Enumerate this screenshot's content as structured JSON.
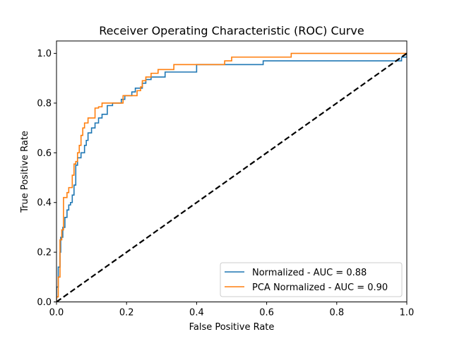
{
  "chart_data": {
    "type": "line",
    "title": "Receiver Operating Characteristic (ROC) Curve",
    "xlabel": "False Positive Rate",
    "ylabel": "True Positive Rate",
    "xlim": [
      0.0,
      1.0
    ],
    "ylim": [
      0.0,
      1.05
    ],
    "x_ticks": [
      0.0,
      0.2,
      0.4,
      0.6,
      0.8,
      1.0
    ],
    "y_ticks": [
      0.0,
      0.2,
      0.4,
      0.6,
      0.8,
      1.0
    ],
    "x_tick_labels": [
      "0.0",
      "0.2",
      "0.4",
      "0.6",
      "0.8",
      "1.0"
    ],
    "y_tick_labels": [
      "0.0",
      "0.2",
      "0.4",
      "0.6",
      "0.8",
      "1.0"
    ],
    "grid": false,
    "legend_position": "lower-right",
    "series": [
      {
        "name": "Normalized - AUC = 0.88",
        "color": "#1f77b4",
        "style": "solid",
        "points": [
          [
            0.0,
            0.0
          ],
          [
            0.0,
            0.06
          ],
          [
            0.005,
            0.06
          ],
          [
            0.005,
            0.14
          ],
          [
            0.01,
            0.14
          ],
          [
            0.01,
            0.2
          ],
          [
            0.012,
            0.2
          ],
          [
            0.012,
            0.26
          ],
          [
            0.018,
            0.26
          ],
          [
            0.018,
            0.3
          ],
          [
            0.024,
            0.3
          ],
          [
            0.024,
            0.34
          ],
          [
            0.03,
            0.34
          ],
          [
            0.03,
            0.37
          ],
          [
            0.035,
            0.37
          ],
          [
            0.035,
            0.39
          ],
          [
            0.04,
            0.39
          ],
          [
            0.04,
            0.4
          ],
          [
            0.045,
            0.4
          ],
          [
            0.045,
            0.43
          ],
          [
            0.05,
            0.43
          ],
          [
            0.05,
            0.47
          ],
          [
            0.055,
            0.47
          ],
          [
            0.055,
            0.55
          ],
          [
            0.06,
            0.55
          ],
          [
            0.06,
            0.58
          ],
          [
            0.07,
            0.58
          ],
          [
            0.07,
            0.6
          ],
          [
            0.08,
            0.6
          ],
          [
            0.08,
            0.63
          ],
          [
            0.085,
            0.63
          ],
          [
            0.085,
            0.65
          ],
          [
            0.09,
            0.65
          ],
          [
            0.09,
            0.68
          ],
          [
            0.1,
            0.68
          ],
          [
            0.1,
            0.7
          ],
          [
            0.11,
            0.7
          ],
          [
            0.11,
            0.72
          ],
          [
            0.12,
            0.72
          ],
          [
            0.12,
            0.74
          ],
          [
            0.13,
            0.74
          ],
          [
            0.13,
            0.755
          ],
          [
            0.145,
            0.755
          ],
          [
            0.145,
            0.79
          ],
          [
            0.16,
            0.79
          ],
          [
            0.16,
            0.8
          ],
          [
            0.185,
            0.8
          ],
          [
            0.185,
            0.815
          ],
          [
            0.195,
            0.815
          ],
          [
            0.195,
            0.83
          ],
          [
            0.215,
            0.83
          ],
          [
            0.215,
            0.845
          ],
          [
            0.225,
            0.845
          ],
          [
            0.225,
            0.86
          ],
          [
            0.245,
            0.86
          ],
          [
            0.245,
            0.88
          ],
          [
            0.255,
            0.88
          ],
          [
            0.255,
            0.895
          ],
          [
            0.27,
            0.895
          ],
          [
            0.27,
            0.905
          ],
          [
            0.31,
            0.905
          ],
          [
            0.31,
            0.925
          ],
          [
            0.4,
            0.925
          ],
          [
            0.4,
            0.955
          ],
          [
            0.59,
            0.955
          ],
          [
            0.59,
            0.97
          ],
          [
            0.985,
            0.97
          ],
          [
            0.985,
            0.985
          ],
          [
            1.0,
            0.985
          ],
          [
            1.0,
            1.0
          ]
        ]
      },
      {
        "name": "PCA Normalized - AUC = 0.90",
        "color": "#ff7f0e",
        "style": "solid",
        "points": [
          [
            0.0,
            0.0
          ],
          [
            0.0,
            0.02
          ],
          [
            0.005,
            0.02
          ],
          [
            0.005,
            0.1
          ],
          [
            0.01,
            0.1
          ],
          [
            0.01,
            0.25
          ],
          [
            0.015,
            0.25
          ],
          [
            0.015,
            0.29
          ],
          [
            0.02,
            0.29
          ],
          [
            0.02,
            0.42
          ],
          [
            0.03,
            0.42
          ],
          [
            0.03,
            0.44
          ],
          [
            0.035,
            0.44
          ],
          [
            0.035,
            0.46
          ],
          [
            0.045,
            0.46
          ],
          [
            0.045,
            0.51
          ],
          [
            0.05,
            0.51
          ],
          [
            0.05,
            0.555
          ],
          [
            0.055,
            0.555
          ],
          [
            0.055,
            0.565
          ],
          [
            0.06,
            0.565
          ],
          [
            0.06,
            0.6
          ],
          [
            0.065,
            0.6
          ],
          [
            0.065,
            0.63
          ],
          [
            0.07,
            0.63
          ],
          [
            0.07,
            0.67
          ],
          [
            0.075,
            0.67
          ],
          [
            0.075,
            0.7
          ],
          [
            0.08,
            0.7
          ],
          [
            0.08,
            0.72
          ],
          [
            0.09,
            0.72
          ],
          [
            0.09,
            0.74
          ],
          [
            0.11,
            0.74
          ],
          [
            0.11,
            0.78
          ],
          [
            0.12,
            0.78
          ],
          [
            0.12,
            0.785
          ],
          [
            0.13,
            0.785
          ],
          [
            0.13,
            0.8
          ],
          [
            0.19,
            0.8
          ],
          [
            0.19,
            0.83
          ],
          [
            0.23,
            0.83
          ],
          [
            0.23,
            0.85
          ],
          [
            0.24,
            0.85
          ],
          [
            0.24,
            0.865
          ],
          [
            0.245,
            0.865
          ],
          [
            0.245,
            0.89
          ],
          [
            0.255,
            0.89
          ],
          [
            0.255,
            0.905
          ],
          [
            0.27,
            0.905
          ],
          [
            0.27,
            0.92
          ],
          [
            0.29,
            0.92
          ],
          [
            0.29,
            0.935
          ],
          [
            0.335,
            0.935
          ],
          [
            0.335,
            0.955
          ],
          [
            0.48,
            0.955
          ],
          [
            0.48,
            0.97
          ],
          [
            0.5,
            0.97
          ],
          [
            0.5,
            0.985
          ],
          [
            0.67,
            0.985
          ],
          [
            0.67,
            1.0
          ],
          [
            1.0,
            1.0
          ]
        ]
      },
      {
        "name": "",
        "color": "#000000",
        "style": "dashed",
        "points": [
          [
            0.0,
            0.0
          ],
          [
            1.0,
            1.0
          ]
        ]
      }
    ]
  }
}
